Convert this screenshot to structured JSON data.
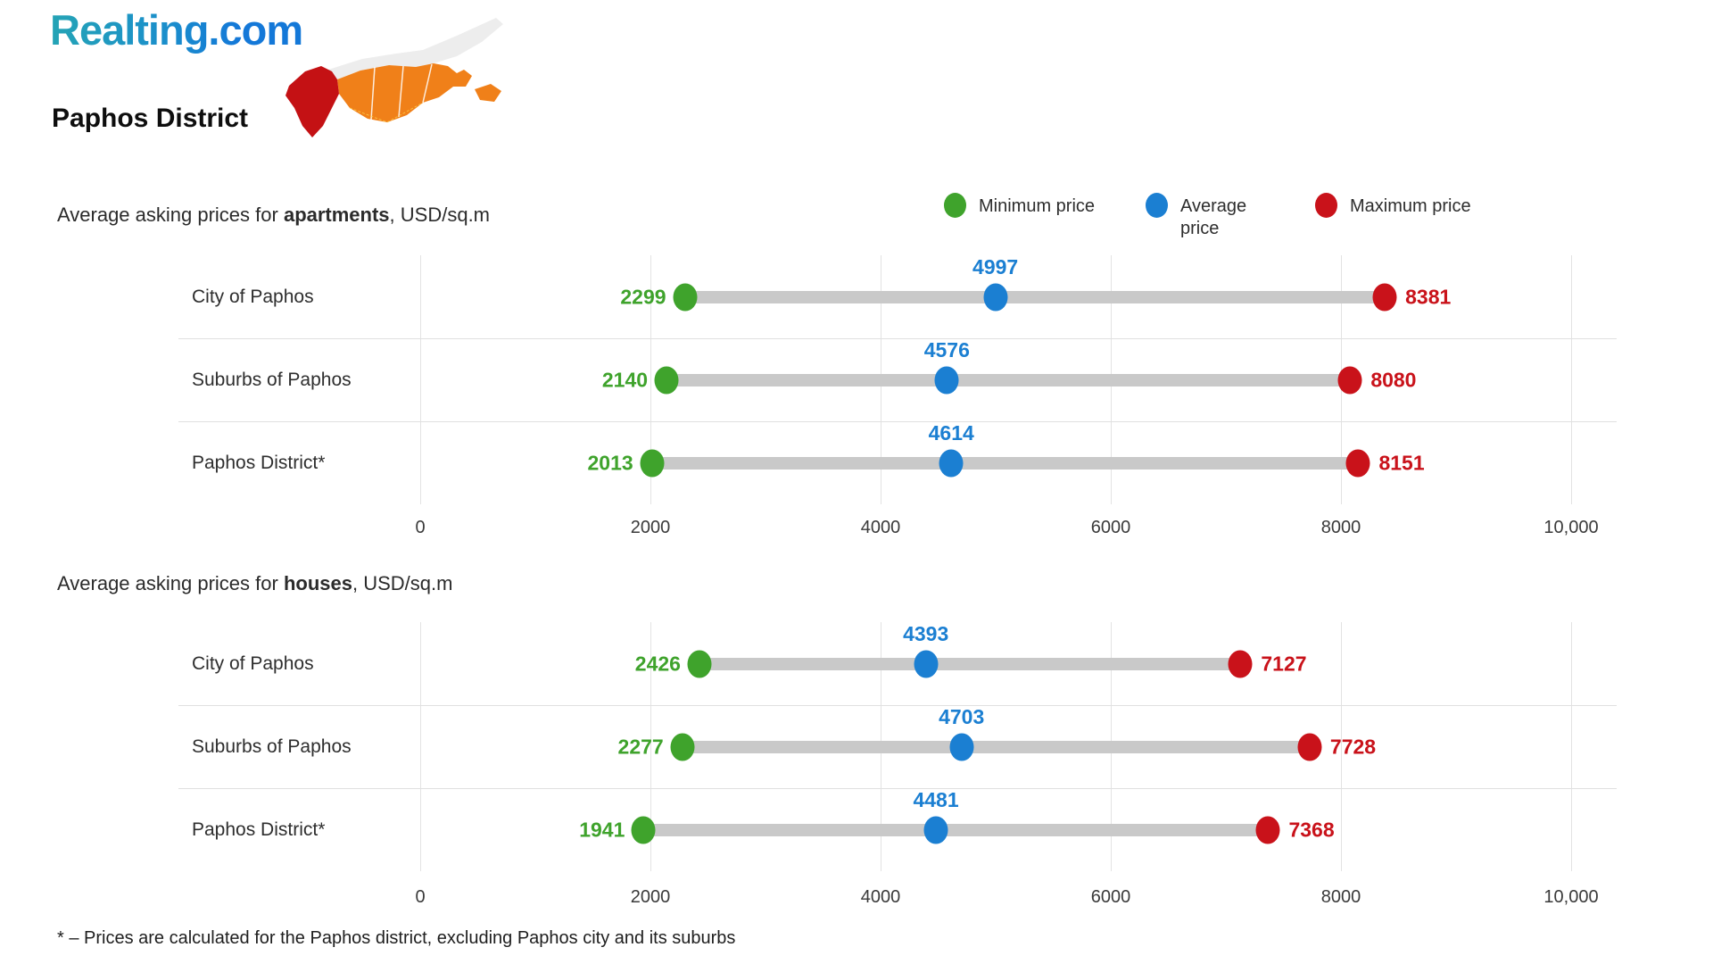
{
  "brand": {
    "logo_text": "Realting.com"
  },
  "page_title": "Paphos District",
  "map": {
    "name": "cyprus-map",
    "highlighted_region": "Paphos District",
    "colors": {
      "highlight": "#c41114",
      "regions": "#f08019",
      "north_area": "#ededed",
      "border": "#ffffff"
    }
  },
  "legend": [
    {
      "label": "Minimum price",
      "color": "#3fa32c"
    },
    {
      "label": "Average price",
      "color": "#1b7fd2"
    },
    {
      "label": "Maximum price",
      "color": "#c9121a"
    }
  ],
  "colors": {
    "min": "#3fa32c",
    "avg": "#1b7fd2",
    "max": "#c9121a",
    "bar": "#c9c9c9",
    "grid": "#e3e3e3"
  },
  "footnote": "* – Prices are calculated for the Paphos district, excluding Paphos city and its suburbs",
  "chart_data": [
    {
      "type": "dumbbell",
      "title_prefix": "Average asking prices for ",
      "title_bold": "apartments",
      "title_suffix": ", USD/sq.m",
      "categories": [
        "City of Paphos",
        "Suburbs of Paphos",
        "Paphos District*"
      ],
      "series": [
        {
          "name": "Minimum price",
          "values": [
            2299,
            2140,
            2013
          ]
        },
        {
          "name": "Average price",
          "values": [
            4997,
            4576,
            4614
          ]
        },
        {
          "name": "Maximum price",
          "values": [
            8381,
            8080,
            8151
          ]
        }
      ],
      "x_ticks": [
        0,
        2000,
        4000,
        6000,
        8000,
        10000
      ],
      "x_tick_labels": [
        "0",
        "2000",
        "4000",
        "6000",
        "8000",
        "10,000"
      ],
      "xlim": [
        0,
        10000
      ],
      "grid": true,
      "legend_position": "top-right"
    },
    {
      "type": "dumbbell",
      "title_prefix": "Average asking prices for ",
      "title_bold": "houses",
      "title_suffix": ", USD/sq.m",
      "categories": [
        "City of Paphos",
        "Suburbs of Paphos",
        "Paphos District*"
      ],
      "series": [
        {
          "name": "Minimum price",
          "values": [
            2426,
            2277,
            1941
          ]
        },
        {
          "name": "Average price",
          "values": [
            4393,
            4703,
            4481
          ]
        },
        {
          "name": "Maximum price",
          "values": [
            7127,
            7728,
            7368
          ]
        }
      ],
      "x_ticks": [
        0,
        2000,
        4000,
        6000,
        8000,
        10000
      ],
      "x_tick_labels": [
        "0",
        "2000",
        "4000",
        "6000",
        "8000",
        "10,000"
      ],
      "xlim": [
        0,
        10000
      ],
      "grid": true,
      "legend_position": "top-right"
    }
  ]
}
